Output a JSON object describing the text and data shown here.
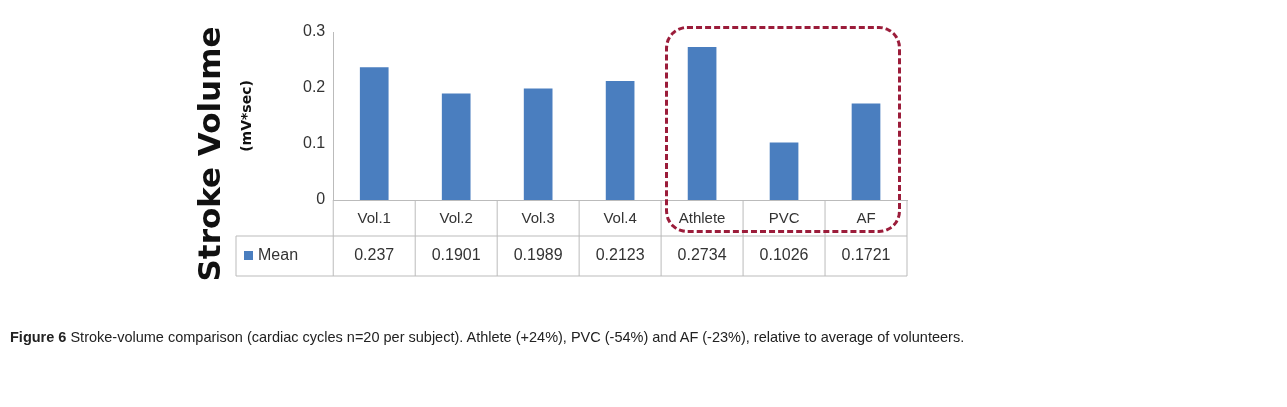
{
  "chart_data": {
    "type": "bar",
    "ylabel": "Stroke Volume\n(mV*sec)",
    "categories": [
      "Vol.1",
      "Vol.2",
      "Vol.3",
      "Vol.4",
      "Athlete",
      "PVC",
      "AF"
    ],
    "series": [
      {
        "name": "Mean",
        "color": "#4a7ebf",
        "values": [
          0.237,
          0.1901,
          0.1989,
          0.2123,
          0.2734,
          0.1026,
          0.1721
        ]
      }
    ],
    "ylim": [
      0,
      0.3
    ],
    "yticks": [
      0,
      0.1,
      0.2,
      0.3
    ],
    "data_labels": true,
    "legend": "bottom",
    "grid": false,
    "annotations": [
      "Figure 6 Stroke-volume comparison (cardiac cycles n=20 per subject). Athlete (+24%), PVC (-54%) and AF (-23%), relative to average of volunteers."
    ]
  }
}
